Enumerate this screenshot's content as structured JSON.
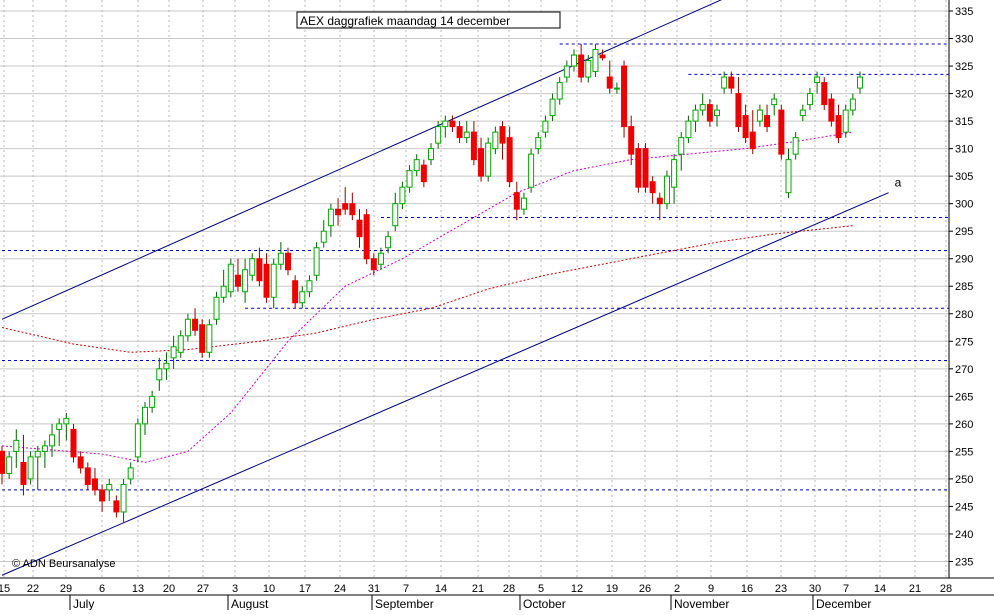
{
  "chart_data": {
    "type": "candlestick",
    "title": "AEX daggrafiek maandag 14 december",
    "copyright": "© ADN Beursanalyse",
    "y_range": [
      232,
      337
    ],
    "y_ticks": [
      235,
      240,
      245,
      250,
      255,
      260,
      265,
      270,
      275,
      280,
      285,
      290,
      295,
      300,
      305,
      310,
      315,
      320,
      325,
      330,
      335
    ],
    "x_tick_labels": [
      "15",
      "22",
      "29",
      "6",
      "13",
      "20",
      "27",
      "3",
      "10",
      "17",
      "24",
      "31",
      "7",
      "14",
      "21",
      "28",
      "5",
      "12",
      "19",
      "26",
      "2",
      "9",
      "16",
      "23",
      "30",
      "7",
      "14",
      "21",
      "28"
    ],
    "month_labels": [
      "July",
      "August",
      "September",
      "October",
      "November",
      "December"
    ],
    "candles": [
      {
        "o": 255,
        "h": 256,
        "l": 249,
        "c": 251
      },
      {
        "o": 251,
        "h": 255,
        "l": 250,
        "c": 254
      },
      {
        "o": 255,
        "h": 259,
        "l": 252,
        "c": 257
      },
      {
        "o": 253,
        "h": 258,
        "l": 247,
        "c": 249
      },
      {
        "o": 250,
        "h": 255,
        "l": 249,
        "c": 254
      },
      {
        "o": 254,
        "h": 256,
        "l": 248,
        "c": 255
      },
      {
        "o": 255,
        "h": 257,
        "l": 252,
        "c": 256
      },
      {
        "o": 256,
        "h": 260,
        "l": 254,
        "c": 258
      },
      {
        "o": 259,
        "h": 261,
        "l": 256,
        "c": 260
      },
      {
        "o": 260,
        "h": 262,
        "l": 257,
        "c": 261
      },
      {
        "o": 259,
        "h": 260,
        "l": 253,
        "c": 254
      },
      {
        "o": 254,
        "h": 255,
        "l": 251,
        "c": 252
      },
      {
        "o": 252,
        "h": 253,
        "l": 248,
        "c": 249
      },
      {
        "o": 250,
        "h": 252,
        "l": 247,
        "c": 248
      },
      {
        "o": 248,
        "h": 249,
        "l": 244,
        "c": 246
      },
      {
        "o": 248,
        "h": 250,
        "l": 246,
        "c": 249
      },
      {
        "o": 246,
        "h": 247,
        "l": 243,
        "c": 244
      },
      {
        "o": 244,
        "h": 250,
        "l": 242,
        "c": 249
      },
      {
        "o": 250,
        "h": 253,
        "l": 249,
        "c": 252
      },
      {
        "o": 254,
        "h": 261,
        "l": 253,
        "c": 260
      },
      {
        "o": 260,
        "h": 264,
        "l": 258,
        "c": 263
      },
      {
        "o": 263,
        "h": 266,
        "l": 262,
        "c": 265
      },
      {
        "o": 268,
        "h": 272,
        "l": 266,
        "c": 270
      },
      {
        "o": 270,
        "h": 273,
        "l": 268,
        "c": 271
      },
      {
        "o": 272,
        "h": 276,
        "l": 270,
        "c": 274
      },
      {
        "o": 273,
        "h": 277,
        "l": 272,
        "c": 276
      },
      {
        "o": 276,
        "h": 280,
        "l": 275,
        "c": 279
      },
      {
        "o": 279,
        "h": 281,
        "l": 276,
        "c": 277
      },
      {
        "o": 278,
        "h": 279,
        "l": 272,
        "c": 273
      },
      {
        "o": 273,
        "h": 279,
        "l": 272,
        "c": 278
      },
      {
        "o": 279,
        "h": 284,
        "l": 278,
        "c": 283
      },
      {
        "o": 283,
        "h": 288,
        "l": 282,
        "c": 285
      },
      {
        "o": 284,
        "h": 290,
        "l": 283,
        "c": 289
      },
      {
        "o": 287,
        "h": 290,
        "l": 284,
        "c": 285
      },
      {
        "o": 284,
        "h": 290,
        "l": 282,
        "c": 288
      },
      {
        "o": 287,
        "h": 291,
        "l": 286,
        "c": 290
      },
      {
        "o": 290,
        "h": 292,
        "l": 285,
        "c": 286
      },
      {
        "o": 289,
        "h": 291,
        "l": 282,
        "c": 283
      },
      {
        "o": 283,
        "h": 290,
        "l": 281,
        "c": 289
      },
      {
        "o": 289,
        "h": 293,
        "l": 288,
        "c": 291
      },
      {
        "o": 291,
        "h": 292,
        "l": 287,
        "c": 288
      },
      {
        "o": 286,
        "h": 287,
        "l": 281,
        "c": 282
      },
      {
        "o": 282,
        "h": 285,
        "l": 281,
        "c": 284
      },
      {
        "o": 284,
        "h": 287,
        "l": 283,
        "c": 286
      },
      {
        "o": 287,
        "h": 293,
        "l": 286,
        "c": 292
      },
      {
        "o": 293,
        "h": 297,
        "l": 292,
        "c": 295
      },
      {
        "o": 296,
        "h": 300,
        "l": 294,
        "c": 299
      },
      {
        "o": 299,
        "h": 301,
        "l": 296,
        "c": 298
      },
      {
        "o": 300,
        "h": 303,
        "l": 298,
        "c": 299
      },
      {
        "o": 300,
        "h": 302,
        "l": 297,
        "c": 298
      },
      {
        "o": 297,
        "h": 299,
        "l": 292,
        "c": 294
      },
      {
        "o": 298,
        "h": 299,
        "l": 289,
        "c": 290
      },
      {
        "o": 290,
        "h": 291,
        "l": 287,
        "c": 288
      },
      {
        "o": 289,
        "h": 292,
        "l": 288,
        "c": 291
      },
      {
        "o": 292,
        "h": 295,
        "l": 291,
        "c": 294
      },
      {
        "o": 296,
        "h": 302,
        "l": 295,
        "c": 300
      },
      {
        "o": 300,
        "h": 304,
        "l": 299,
        "c": 303
      },
      {
        "o": 303,
        "h": 307,
        "l": 302,
        "c": 306
      },
      {
        "o": 306,
        "h": 309,
        "l": 305,
        "c": 308
      },
      {
        "o": 307,
        "h": 308,
        "l": 303,
        "c": 304
      },
      {
        "o": 308,
        "h": 311,
        "l": 307,
        "c": 310
      },
      {
        "o": 311,
        "h": 315,
        "l": 310,
        "c": 314
      },
      {
        "o": 314,
        "h": 316,
        "l": 312,
        "c": 315
      },
      {
        "o": 315,
        "h": 316,
        "l": 313,
        "c": 314
      },
      {
        "o": 314,
        "h": 315,
        "l": 311,
        "c": 312
      },
      {
        "o": 312,
        "h": 315,
        "l": 311,
        "c": 313
      },
      {
        "o": 313,
        "h": 315,
        "l": 307,
        "c": 308
      },
      {
        "o": 310,
        "h": 312,
        "l": 304,
        "c": 305
      },
      {
        "o": 305,
        "h": 312,
        "l": 304,
        "c": 311
      },
      {
        "o": 310,
        "h": 314,
        "l": 309,
        "c": 313
      },
      {
        "o": 314,
        "h": 315,
        "l": 308,
        "c": 311
      },
      {
        "o": 312,
        "h": 314,
        "l": 303,
        "c": 304
      },
      {
        "o": 302,
        "h": 304,
        "l": 297,
        "c": 299
      },
      {
        "o": 299,
        "h": 302,
        "l": 298,
        "c": 301
      },
      {
        "o": 303,
        "h": 310,
        "l": 302,
        "c": 309
      },
      {
        "o": 310,
        "h": 313,
        "l": 309,
        "c": 312
      },
      {
        "o": 313,
        "h": 316,
        "l": 312,
        "c": 315
      },
      {
        "o": 316,
        "h": 320,
        "l": 315,
        "c": 319
      },
      {
        "o": 319,
        "h": 323,
        "l": 318,
        "c": 322
      },
      {
        "o": 323,
        "h": 326,
        "l": 322,
        "c": 325
      },
      {
        "o": 325,
        "h": 328,
        "l": 324,
        "c": 327
      },
      {
        "o": 327,
        "h": 329,
        "l": 322,
        "c": 323
      },
      {
        "o": 323,
        "h": 327,
        "l": 322,
        "c": 326
      },
      {
        "o": 324,
        "h": 329,
        "l": 323,
        "c": 328
      },
      {
        "o": 327,
        "h": 328,
        "l": 326,
        "c": 326.5
      },
      {
        "o": 323,
        "h": 326,
        "l": 320,
        "c": 321
      },
      {
        "o": 321,
        "h": 322,
        "l": 320,
        "c": 321
      },
      {
        "o": 325,
        "h": 326,
        "l": 312,
        "c": 314
      },
      {
        "o": 314,
        "h": 316,
        "l": 307,
        "c": 309
      },
      {
        "o": 310,
        "h": 311,
        "l": 302,
        "c": 303
      },
      {
        "o": 310,
        "h": 311,
        "l": 302,
        "c": 303
      },
      {
        "o": 304,
        "h": 305,
        "l": 300,
        "c": 302
      },
      {
        "o": 301,
        "h": 302,
        "l": 297,
        "c": 300
      },
      {
        "o": 300,
        "h": 306,
        "l": 299,
        "c": 305
      },
      {
        "o": 303,
        "h": 309,
        "l": 300,
        "c": 308
      },
      {
        "o": 309,
        "h": 313,
        "l": 306,
        "c": 312
      },
      {
        "o": 312,
        "h": 316,
        "l": 311,
        "c": 315
      },
      {
        "o": 315,
        "h": 318,
        "l": 313,
        "c": 317
      },
      {
        "o": 317,
        "h": 320,
        "l": 316,
        "c": 318
      },
      {
        "o": 318,
        "h": 319,
        "l": 314,
        "c": 315
      },
      {
        "o": 316,
        "h": 318,
        "l": 314,
        "c": 317
      },
      {
        "o": 321,
        "h": 324,
        "l": 320,
        "c": 323
      },
      {
        "o": 323,
        "h": 324,
        "l": 320,
        "c": 321
      },
      {
        "o": 320,
        "h": 323,
        "l": 313,
        "c": 314
      },
      {
        "o": 316,
        "h": 318,
        "l": 311,
        "c": 312
      },
      {
        "o": 313,
        "h": 317,
        "l": 309,
        "c": 310
      },
      {
        "o": 315,
        "h": 318,
        "l": 314,
        "c": 317
      },
      {
        "o": 316,
        "h": 318,
        "l": 313,
        "c": 314
      },
      {
        "o": 318,
        "h": 320,
        "l": 316,
        "c": 319
      },
      {
        "o": 317,
        "h": 318,
        "l": 308,
        "c": 309
      },
      {
        "o": 302,
        "h": 310,
        "l": 301,
        "c": 308
      },
      {
        "o": 309,
        "h": 313,
        "l": 308,
        "c": 312
      },
      {
        "o": 316,
        "h": 318,
        "l": 315,
        "c": 317
      },
      {
        "o": 318,
        "h": 321,
        "l": 317,
        "c": 320
      },
      {
        "o": 322,
        "h": 324,
        "l": 320,
        "c": 323
      },
      {
        "o": 322,
        "h": 323,
        "l": 317,
        "c": 318
      },
      {
        "o": 319,
        "h": 320,
        "l": 314,
        "c": 315
      },
      {
        "o": 316,
        "h": 318,
        "l": 311,
        "c": 312
      },
      {
        "o": 313,
        "h": 318,
        "l": 312,
        "c": 317
      },
      {
        "o": 317,
        "h": 320,
        "l": 316,
        "c": 319
      },
      {
        "o": 321,
        "h": 324,
        "l": 320,
        "c": 323
      }
    ],
    "moving_averages": [
      {
        "name": "",
        "color": "#cc00cc",
        "points": [
          [
            0,
            256
          ],
          [
            14,
            254.5
          ],
          [
            20,
            253
          ],
          [
            26,
            255
          ],
          [
            32,
            262
          ],
          [
            40,
            275
          ],
          [
            48,
            285
          ],
          [
            56,
            290
          ],
          [
            64,
            296
          ],
          [
            72,
            302
          ],
          [
            80,
            306
          ],
          [
            88,
            308
          ],
          [
            96,
            309
          ],
          [
            104,
            310
          ],
          [
            112,
            311.5
          ],
          [
            119,
            313
          ]
        ]
      },
      {
        "name": "",
        "color": "#cc0000",
        "points": [
          [
            0,
            277.5
          ],
          [
            10,
            274.5
          ],
          [
            18,
            273
          ],
          [
            26,
            273.5
          ],
          [
            36,
            275
          ],
          [
            44,
            276.5
          ],
          [
            52,
            279
          ],
          [
            60,
            281
          ],
          [
            68,
            284.5
          ],
          [
            76,
            287
          ],
          [
            84,
            289
          ],
          [
            92,
            291
          ],
          [
            100,
            293
          ],
          [
            108,
            294.5
          ],
          [
            119,
            296
          ]
        ]
      }
    ],
    "trendlines": [
      {
        "label": "",
        "color": "#000080",
        "from": [
          0,
          279
        ],
        "to": [
          104,
          339
        ]
      },
      {
        "label": "a",
        "color": "#000080",
        "from": [
          0,
          232.5
        ],
        "to": [
          124,
          302
        ]
      }
    ],
    "horizontal_levels": [
      {
        "y": 329,
        "x_from": 78,
        "x_to": 136
      },
      {
        "y": 323.5,
        "x_from": 96,
        "x_to": 136
      },
      {
        "y": 297.5,
        "x_from": 53,
        "x_to": 136
      },
      {
        "y": 291.5,
        "x_from": 0,
        "x_to": 136
      },
      {
        "y": 281,
        "x_from": 34,
        "x_to": 136
      },
      {
        "y": 271.5,
        "x_from": 0,
        "x_to": 136
      },
      {
        "y": 248,
        "x_from": 0,
        "x_to": 136
      }
    ],
    "colors": {
      "up": "#00aa00",
      "down": "#ee0000",
      "grid": "#b8b8b8",
      "levels": "#0000cc",
      "background": "#ffffff"
    }
  }
}
